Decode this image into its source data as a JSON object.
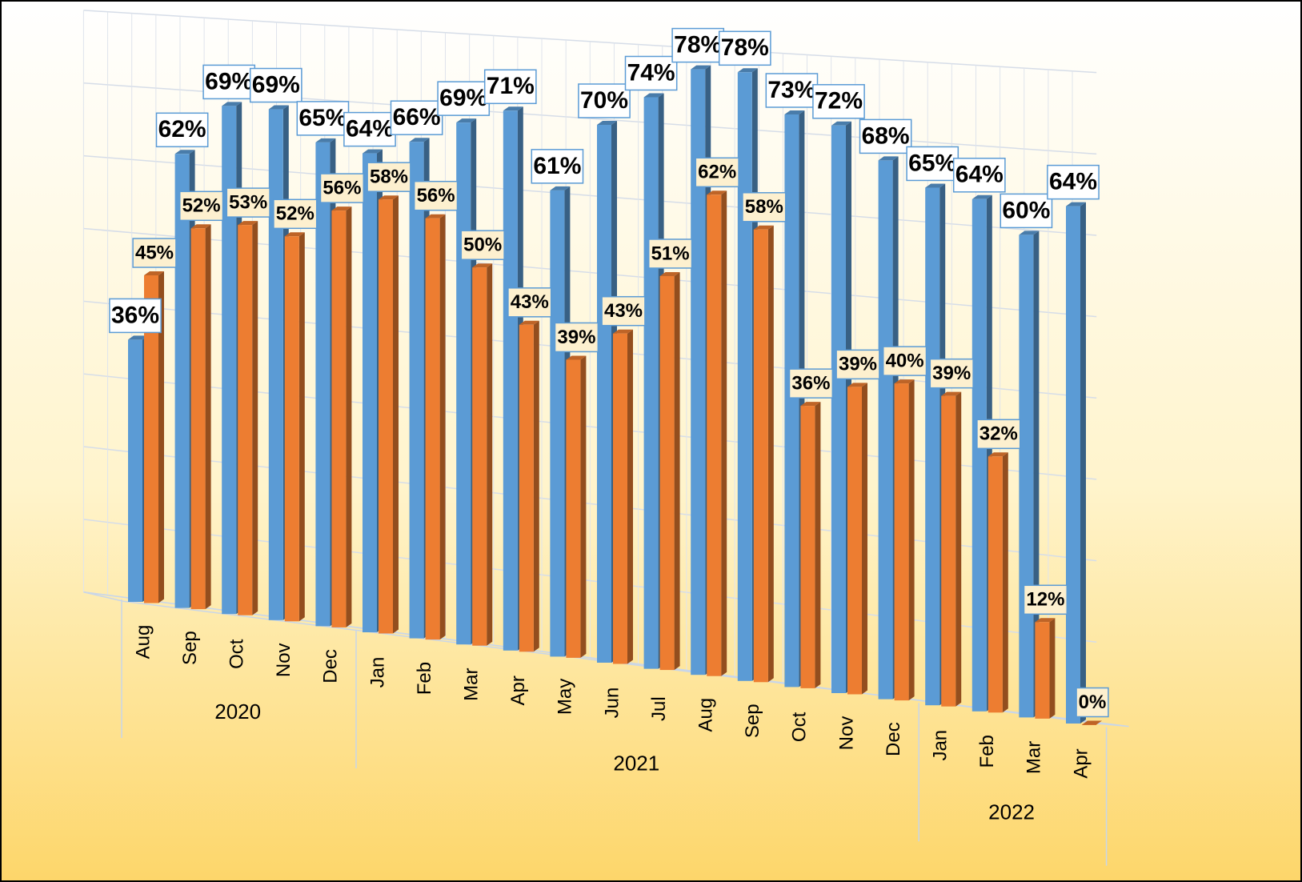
{
  "chart_data": {
    "type": "bar3d",
    "category_groups": [
      {
        "label": "2020",
        "categories": [
          "Aug",
          "Sep",
          "Oct",
          "Nov",
          "Dec"
        ]
      },
      {
        "label": "2021",
        "categories": [
          "Jan",
          "Feb",
          "Mar",
          "Apr",
          "May",
          "Jun",
          "Jul",
          "Aug",
          "Sep",
          "Oct",
          "Nov",
          "Dec"
        ]
      },
      {
        "label": "2022",
        "categories": [
          "Jan",
          "Feb",
          "Mar",
          "Apr"
        ]
      }
    ],
    "series": [
      {
        "color": "#5b9bd5",
        "values": [
          36,
          62,
          69,
          69,
          65,
          64,
          66,
          69,
          71,
          61,
          70,
          74,
          78,
          78,
          73,
          72,
          68,
          65,
          64,
          60,
          64
        ],
        "value_labels": [
          "36%",
          "62%",
          "69%",
          "69%",
          "65%",
          "64%",
          "66%",
          "69%",
          "71%",
          "61%",
          "70%",
          "74%",
          "78%",
          "78%",
          "73%",
          "72%",
          "68%",
          "65%",
          "64%",
          "60%",
          "64%"
        ]
      },
      {
        "color": "#ed7d31",
        "values": [
          45,
          52,
          53,
          52,
          56,
          58,
          56,
          50,
          43,
          39,
          43,
          51,
          62,
          58,
          36,
          39,
          40,
          39,
          32,
          12,
          0
        ],
        "value_labels": [
          "45%",
          "52%",
          "53%",
          "52%",
          "56%",
          "58%",
          "56%",
          "50%",
          "43%",
          "39%",
          "43%",
          "51%",
          "62%",
          "58%",
          "36%",
          "39%",
          "40%",
          "39%",
          "32%",
          "12%",
          "0%"
        ]
      }
    ],
    "ylim": [
      0,
      80
    ],
    "yticks": [
      0,
      10,
      20,
      30,
      40,
      50,
      60,
      70,
      80
    ],
    "grid": true
  }
}
